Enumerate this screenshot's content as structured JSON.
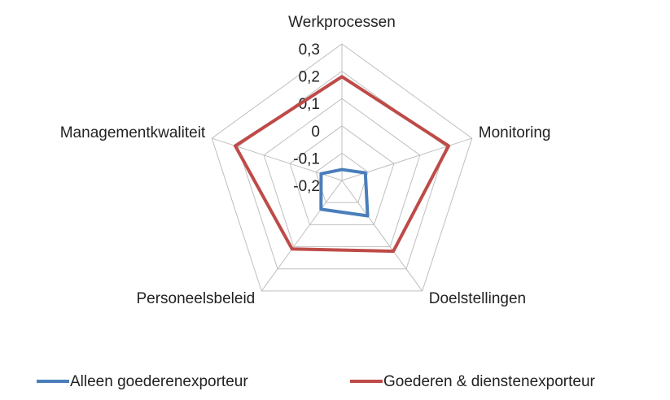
{
  "chart_data": {
    "type": "radar",
    "categories": [
      "Werkprocessen",
      "Monitoring",
      "Doelstellingen",
      "Personeelsbeleid",
      "Managementkwaliteit"
    ],
    "series": [
      {
        "name": "Alleen goederenexporteur",
        "color": "#4a7ebb",
        "values": [
          -0.16,
          -0.11,
          -0.04,
          -0.07,
          -0.12
        ]
      },
      {
        "name": "Goederen & dienstenexporteur",
        "color": "#be4b48",
        "values": [
          0.18,
          0.21,
          0.12,
          0.11,
          0.21
        ]
      }
    ],
    "ylim": [
      -0.2,
      0.3
    ],
    "yticks": [
      {
        "value": -0.2,
        "label": "-0,2"
      },
      {
        "value": -0.1,
        "label": "-0,1"
      },
      0,
      {
        "value": 0.1,
        "label": "0,1"
      },
      {
        "value": 0.2,
        "label": "0,2"
      },
      {
        "value": 0.3,
        "label": "0,3"
      }
    ],
    "grid": true,
    "legend": "bottom"
  }
}
